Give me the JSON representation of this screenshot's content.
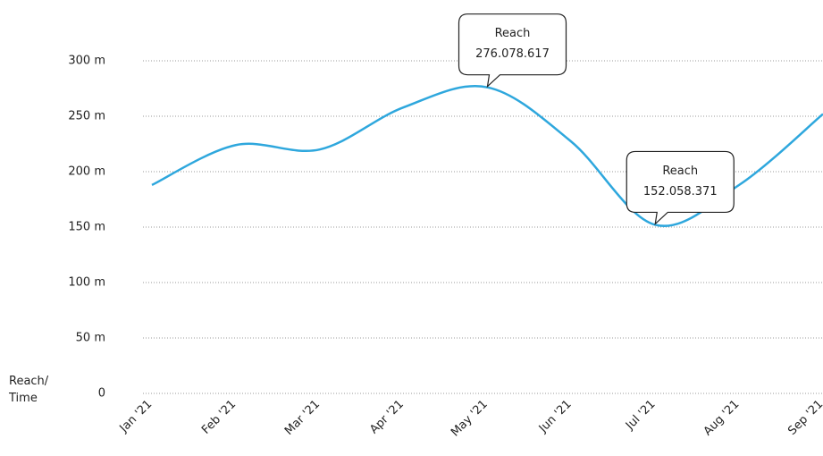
{
  "chart_data": {
    "type": "line",
    "y_label": "Reach/\nTime",
    "categories": [
      "Jan '21",
      "Feb '21",
      "Mar '21",
      "Apr '21",
      "May '21",
      "Jun '21",
      "Jul '21",
      "Aug '21",
      "Sep '21"
    ],
    "series": [
      {
        "name": "Reach",
        "color": "#2ea7dd",
        "values": [
          188000000,
          224000000,
          220000000,
          258000000,
          276078617,
          227000000,
          152058371,
          188000000,
          252000000
        ],
        "value_labels": [
          null,
          null,
          null,
          null,
          "276.078.617",
          null,
          "152.058.371",
          null,
          null
        ]
      }
    ],
    "ylim": [
      0,
      300000000
    ],
    "yticks": [
      0,
      {
        "value": 50000000,
        "label": "50 m"
      },
      {
        "value": 100000000,
        "label": "100 m"
      },
      {
        "value": 150000000,
        "label": "150 m"
      },
      {
        "value": 200000000,
        "label": "200 m"
      },
      {
        "value": 250000000,
        "label": "250 m"
      },
      {
        "value": 300000000,
        "label": "300 m"
      }
    ],
    "grid": true
  }
}
